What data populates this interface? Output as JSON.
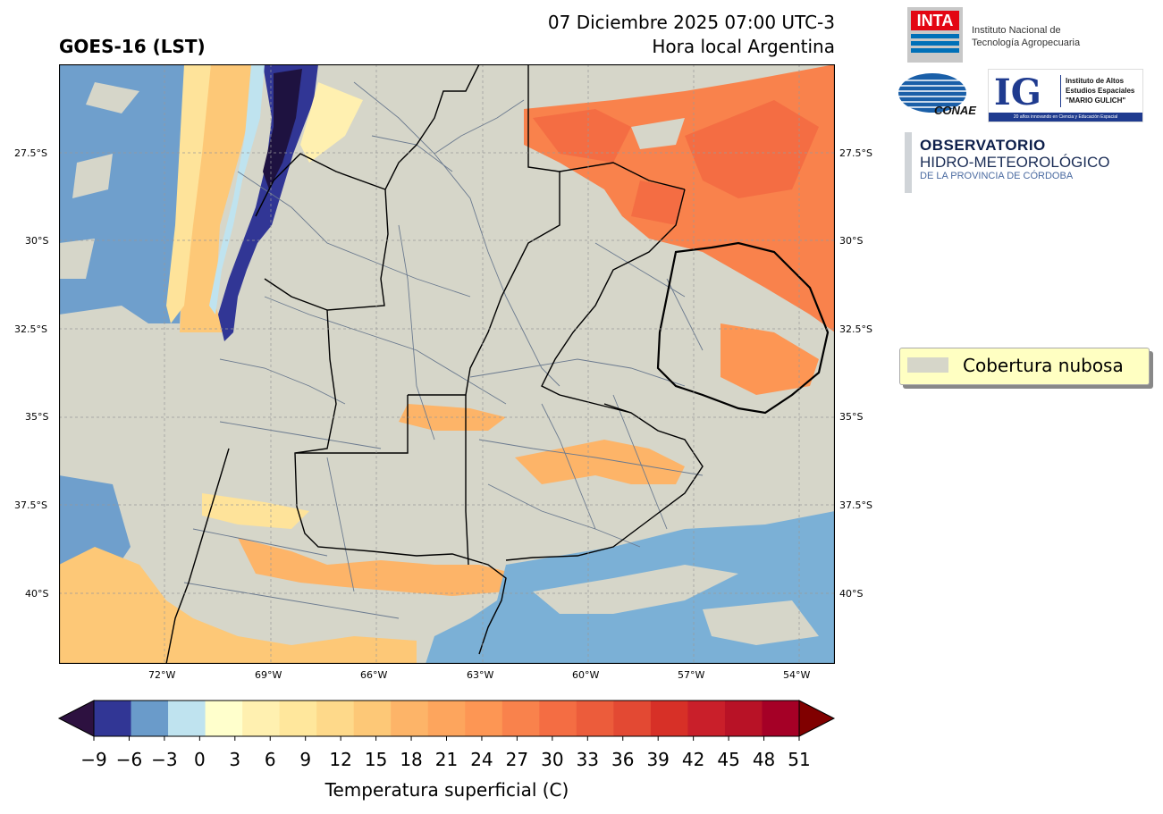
{
  "header": {
    "satellite": "GOES-16 (LST)",
    "datetime": "07 Diciembre 2025 07:00 UTC-3",
    "local_time": "Hora local Argentina"
  },
  "logos": {
    "inta_mark": "INTA",
    "inta_line1": "Instituto Nacional de",
    "inta_line2": "Tecnología Agropecuaria",
    "conae": "CONAE",
    "ig_mark": "IG",
    "ig_line1": "Instituto de Altos",
    "ig_line2": "Estudios Espaciales",
    "ig_line3": "\"MARIO GULICH\"",
    "ig_footer": "20 años innovando en Ciencia y Educación Espacial",
    "obs_line1": "OBSERVATORIO",
    "obs_line2": "HIDRO-METEOROLÓGICO",
    "obs_line3": "DE LA PROVINCIA DE CÓRDOBA"
  },
  "map": {
    "lat_labels": [
      "27.5°S",
      "30°S",
      "32.5°S",
      "35°S",
      "37.5°S",
      "40°S"
    ],
    "lon_labels": [
      "72°W",
      "69°W",
      "66°W",
      "63°W",
      "60°W",
      "57°W",
      "54°W"
    ],
    "cloud_color": "#d6d6c9"
  },
  "legend": {
    "label": "Cobertura nubosa"
  },
  "colorbar": {
    "label": "Temperatura superficial (C)",
    "ticks": [
      "−9",
      "−6",
      "−3",
      "0",
      "3",
      "6",
      "9",
      "12",
      "15",
      "18",
      "21",
      "24",
      "27",
      "30",
      "33",
      "36",
      "39",
      "42",
      "45",
      "48",
      "51"
    ],
    "colors": [
      "#313695",
      "#6a9bca",
      "#bfe3ef",
      "#ffffcc",
      "#fff0b0",
      "#ffe79c",
      "#fed98a",
      "#fdc877",
      "#fdb468",
      "#fda55d",
      "#fd9654",
      "#f9824c",
      "#f46d43",
      "#ec5c3b",
      "#e34933",
      "#d73027",
      "#c91f2a",
      "#b81226",
      "#a50026"
    ],
    "under_color": "#2d1140",
    "over_color": "#800000"
  }
}
